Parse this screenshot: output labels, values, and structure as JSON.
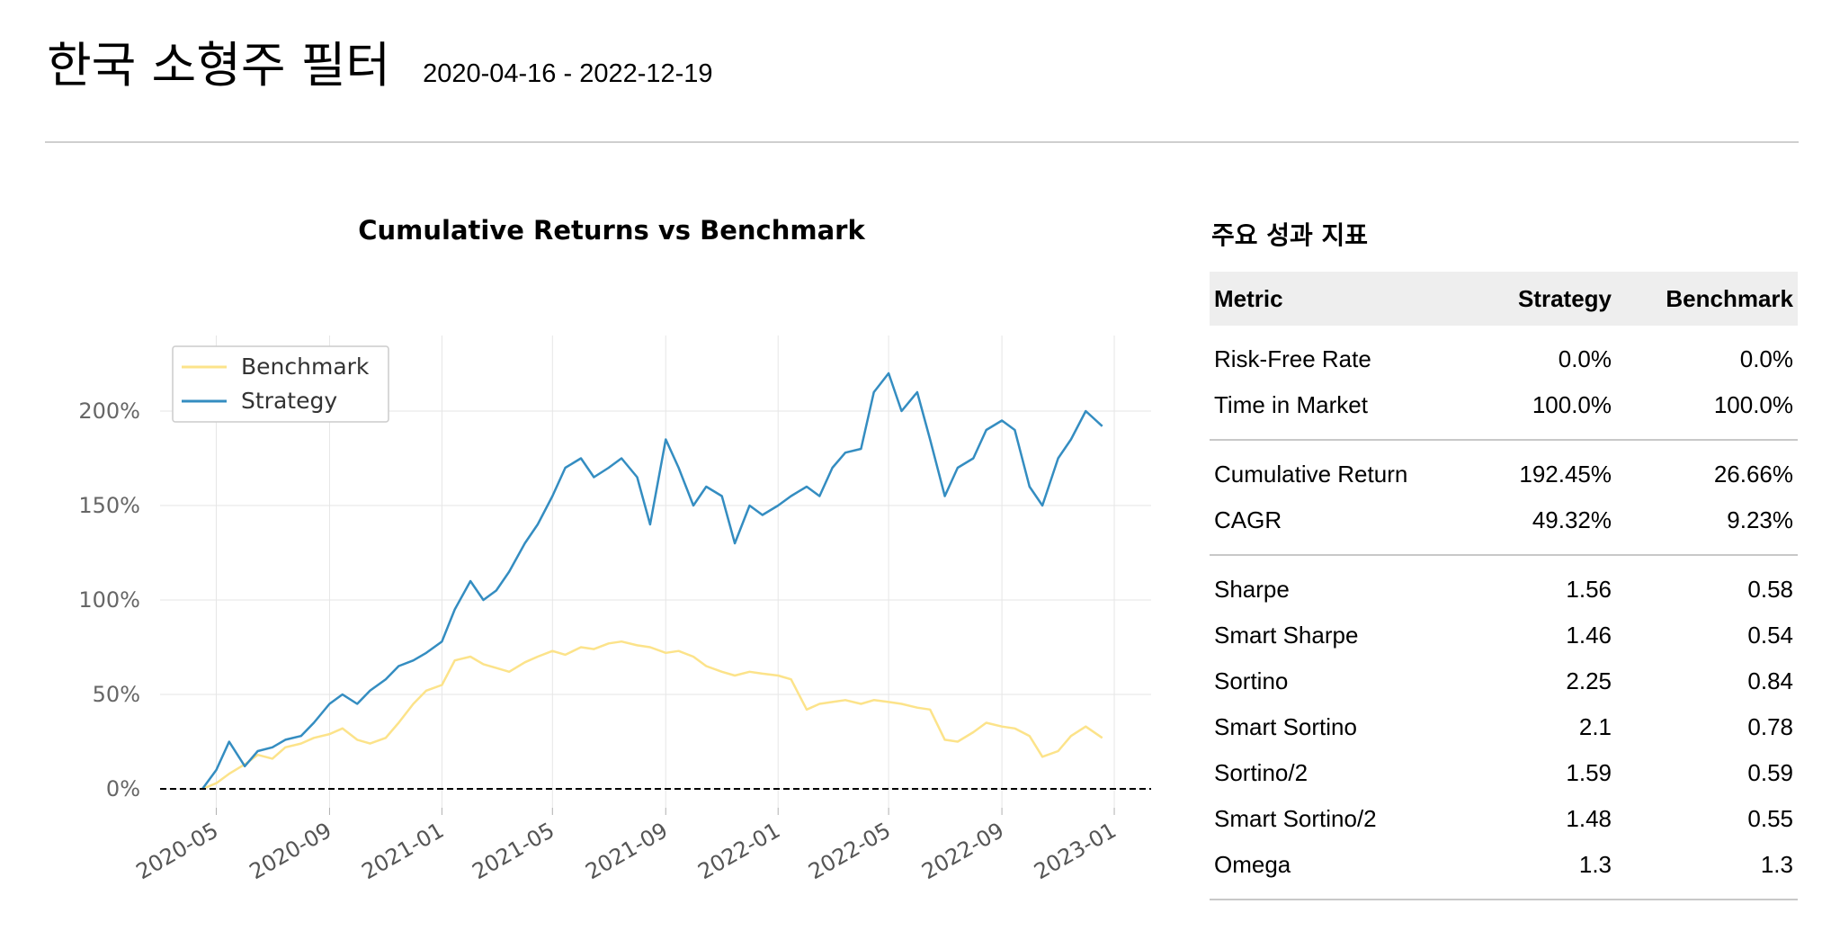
{
  "header": {
    "title": "한국 소형주 필터",
    "date_range": "2020-04-16 - 2022-12-19"
  },
  "chart_data": {
    "type": "line",
    "title": "Cumulative Returns vs Benchmark",
    "xlabel": "",
    "ylabel": "",
    "x_ticks": [
      "2020-05",
      "2020-09",
      "2021-01",
      "2021-05",
      "2021-09",
      "2022-01",
      "2022-05",
      "2022-09",
      "2023-01"
    ],
    "y_ticks": [
      "0%",
      "50%",
      "100%",
      "150%",
      "200%"
    ],
    "ylim": [
      -10,
      240
    ],
    "legend": {
      "position": "top-left",
      "entries": [
        "Benchmark",
        "Strategy"
      ]
    },
    "grid": true,
    "baseline": 0,
    "colors": {
      "benchmark": "#fce38a",
      "strategy": "#348dc1"
    },
    "series": [
      {
        "name": "Benchmark",
        "dates": [
          "2020-04-16",
          "2020-05-01",
          "2020-05-15",
          "2020-06-01",
          "2020-06-15",
          "2020-07-01",
          "2020-07-15",
          "2020-08-01",
          "2020-08-15",
          "2020-09-01",
          "2020-09-15",
          "2020-10-01",
          "2020-10-15",
          "2020-11-01",
          "2020-11-15",
          "2020-12-01",
          "2020-12-15",
          "2021-01-01",
          "2021-01-15",
          "2021-02-01",
          "2021-02-15",
          "2021-03-01",
          "2021-03-15",
          "2021-04-01",
          "2021-04-15",
          "2021-05-01",
          "2021-05-15",
          "2021-06-01",
          "2021-06-15",
          "2021-07-01",
          "2021-07-15",
          "2021-08-01",
          "2021-08-15",
          "2021-09-01",
          "2021-09-15",
          "2021-10-01",
          "2021-10-15",
          "2021-11-01",
          "2021-11-15",
          "2021-12-01",
          "2021-12-15",
          "2022-01-01",
          "2022-01-15",
          "2022-02-01",
          "2022-02-15",
          "2022-03-01",
          "2022-03-15",
          "2022-04-01",
          "2022-04-15",
          "2022-05-01",
          "2022-05-15",
          "2022-06-01",
          "2022-06-15",
          "2022-07-01",
          "2022-07-15",
          "2022-08-01",
          "2022-08-15",
          "2022-09-01",
          "2022-09-15",
          "2022-10-01",
          "2022-10-15",
          "2022-11-01",
          "2022-11-15",
          "2022-12-01",
          "2022-12-19"
        ],
        "values": [
          0,
          3,
          8,
          13,
          18,
          16,
          22,
          24,
          27,
          29,
          32,
          26,
          24,
          27,
          35,
          45,
          52,
          55,
          68,
          70,
          66,
          64,
          62,
          67,
          70,
          73,
          71,
          75,
          74,
          77,
          78,
          76,
          75,
          72,
          73,
          70,
          65,
          62,
          60,
          62,
          61,
          60,
          58,
          42,
          45,
          46,
          47,
          45,
          47,
          46,
          45,
          43,
          42,
          26,
          25,
          30,
          35,
          33,
          32,
          28,
          17,
          20,
          28,
          33,
          27
        ]
      },
      {
        "name": "Strategy",
        "dates": [
          "2020-04-16",
          "2020-05-01",
          "2020-05-15",
          "2020-06-01",
          "2020-06-15",
          "2020-07-01",
          "2020-07-15",
          "2020-08-01",
          "2020-08-15",
          "2020-09-01",
          "2020-09-15",
          "2020-10-01",
          "2020-10-15",
          "2020-11-01",
          "2020-11-15",
          "2020-12-01",
          "2020-12-15",
          "2021-01-01",
          "2021-01-15",
          "2021-02-01",
          "2021-02-15",
          "2021-03-01",
          "2021-03-15",
          "2021-04-01",
          "2021-04-15",
          "2021-05-01",
          "2021-05-15",
          "2021-06-01",
          "2021-06-15",
          "2021-07-01",
          "2021-07-15",
          "2021-08-01",
          "2021-08-15",
          "2021-09-01",
          "2021-09-15",
          "2021-10-01",
          "2021-10-15",
          "2021-11-01",
          "2021-11-15",
          "2021-12-01",
          "2021-12-15",
          "2022-01-01",
          "2022-01-15",
          "2022-02-01",
          "2022-02-15",
          "2022-03-01",
          "2022-03-15",
          "2022-04-01",
          "2022-04-15",
          "2022-05-01",
          "2022-05-15",
          "2022-06-01",
          "2022-06-15",
          "2022-07-01",
          "2022-07-15",
          "2022-08-01",
          "2022-08-15",
          "2022-09-01",
          "2022-09-15",
          "2022-10-01",
          "2022-10-15",
          "2022-11-01",
          "2022-11-15",
          "2022-12-01",
          "2022-12-19"
        ],
        "values": [
          0,
          10,
          25,
          12,
          20,
          22,
          26,
          28,
          35,
          45,
          50,
          45,
          52,
          58,
          65,
          68,
          72,
          78,
          95,
          110,
          100,
          105,
          115,
          130,
          140,
          155,
          170,
          175,
          165,
          170,
          175,
          165,
          140,
          185,
          170,
          150,
          160,
          155,
          130,
          150,
          145,
          150,
          155,
          160,
          155,
          170,
          178,
          180,
          210,
          220,
          200,
          210,
          185,
          155,
          170,
          175,
          190,
          195,
          190,
          160,
          150,
          175,
          185,
          200,
          192
        ]
      }
    ]
  },
  "metrics": {
    "title": "주요 성과 지표",
    "headers": {
      "metric": "Metric",
      "strategy": "Strategy",
      "benchmark": "Benchmark"
    },
    "group1": [
      {
        "metric": "Risk-Free Rate",
        "strategy": "0.0%",
        "benchmark": "0.0%"
      },
      {
        "metric": "Time in Market",
        "strategy": "100.0%",
        "benchmark": "100.0%"
      }
    ],
    "group2": [
      {
        "metric": "Cumulative Return",
        "strategy": "192.45%",
        "benchmark": "26.66%"
      },
      {
        "metric": "CAGR",
        "strategy": "49.32%",
        "benchmark": "9.23%"
      }
    ],
    "group3": [
      {
        "metric": "Sharpe",
        "strategy": "1.56",
        "benchmark": "0.58"
      },
      {
        "metric": "Smart Sharpe",
        "strategy": "1.46",
        "benchmark": "0.54"
      },
      {
        "metric": "Sortino",
        "strategy": "2.25",
        "benchmark": "0.84"
      },
      {
        "metric": "Smart Sortino",
        "strategy": "2.1",
        "benchmark": "0.78"
      },
      {
        "metric": "Sortino/2",
        "strategy": "1.59",
        "benchmark": "0.59"
      },
      {
        "metric": "Smart Sortino/2",
        "strategy": "1.48",
        "benchmark": "0.55"
      },
      {
        "metric": "Omega",
        "strategy": "1.3",
        "benchmark": "1.3"
      }
    ]
  }
}
